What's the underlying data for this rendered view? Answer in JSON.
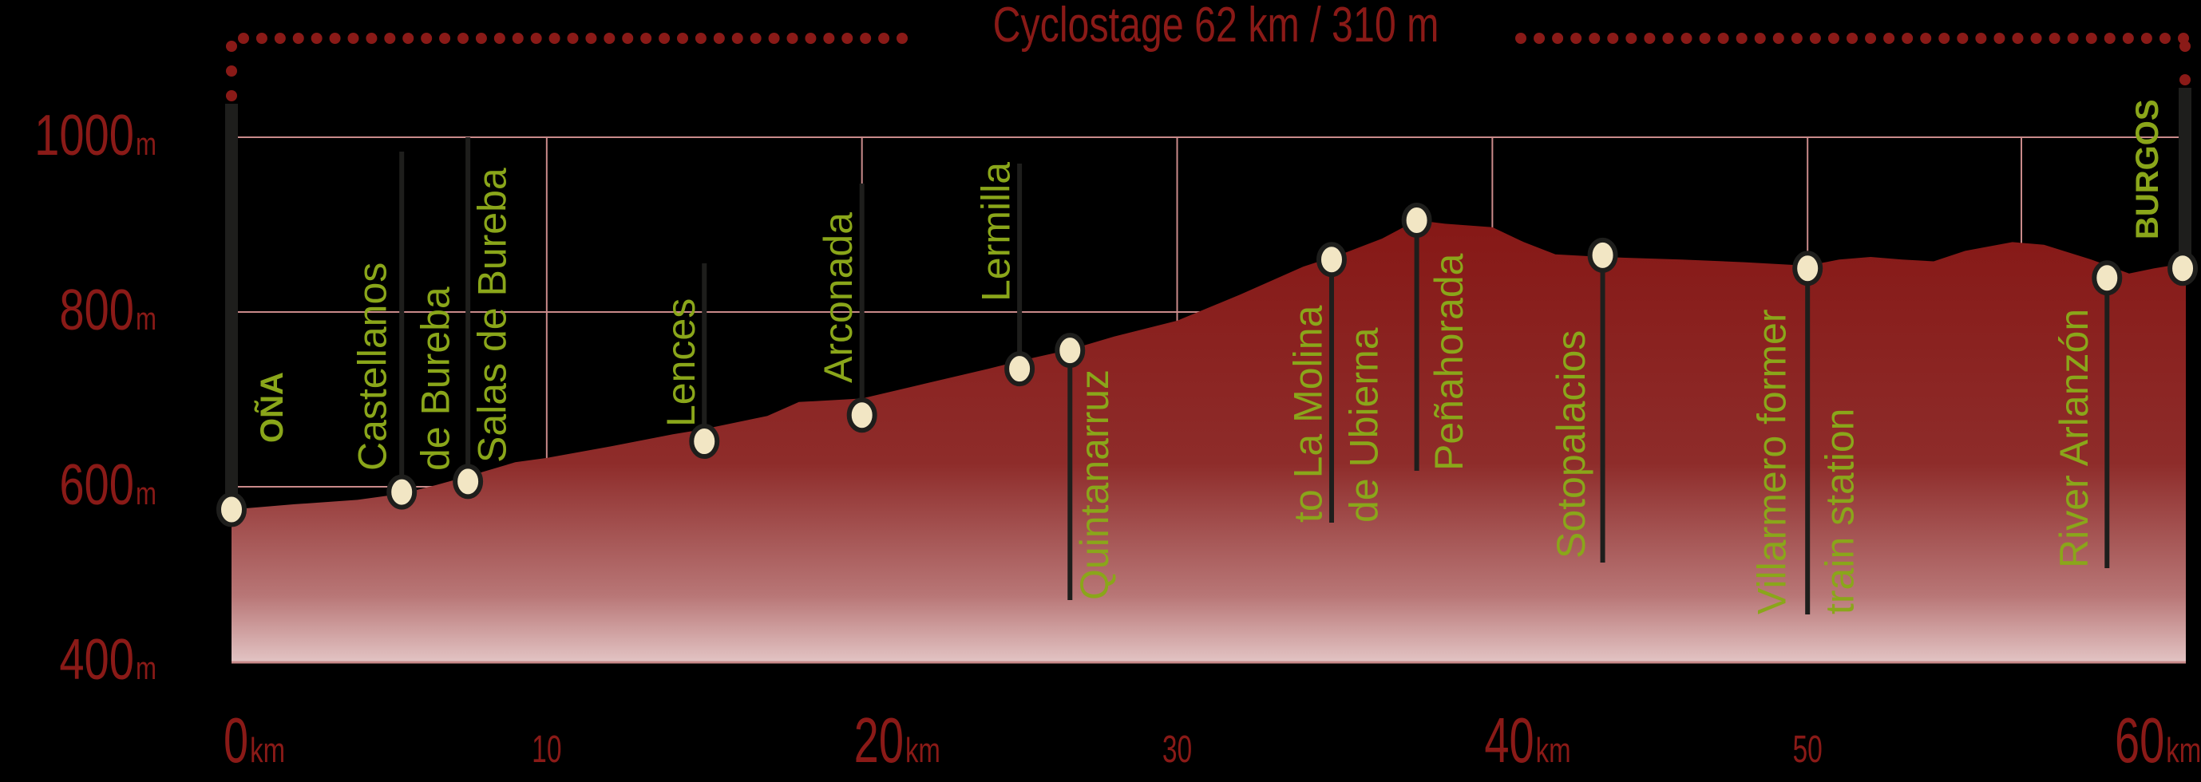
{
  "title": "Cyclostage 62 km / 310 m",
  "colors": {
    "background": "#000000",
    "accent_red": "#8a1a17",
    "label_green": "#8aa61a",
    "grid": "#c98a8a",
    "marker_fill": "#f2e6c4",
    "marker_stroke": "#1e1e1c"
  },
  "y_axis": {
    "ticks": [
      {
        "value": "1000",
        "unit": "m"
      },
      {
        "value": "800",
        "unit": "m"
      },
      {
        "value": "600",
        "unit": "m"
      },
      {
        "value": "400",
        "unit": "m"
      }
    ]
  },
  "x_axis": {
    "ticks": [
      {
        "value": "0",
        "unit": "km"
      },
      {
        "value": "10",
        "unit": ""
      },
      {
        "value": "20",
        "unit": "km"
      },
      {
        "value": "30",
        "unit": ""
      },
      {
        "value": "40",
        "unit": "km"
      },
      {
        "value": "50",
        "unit": ""
      },
      {
        "value": "60",
        "unit": "km"
      }
    ]
  },
  "start_label": "OÑA",
  "end_label": "BURGOS",
  "waypoints": [
    {
      "name": "OÑA",
      "lines": [
        "OÑA"
      ]
    },
    {
      "name": "Castellanos de Bureba",
      "lines": [
        "Castellanos",
        "de Bureba"
      ]
    },
    {
      "name": "Salas de Bureba",
      "lines": [
        "Salas de Bureba"
      ]
    },
    {
      "name": "Lences",
      "lines": [
        "Lences"
      ]
    },
    {
      "name": "Arconada",
      "lines": [
        "Arconada"
      ]
    },
    {
      "name": "Lermilla",
      "lines": [
        "Lermilla"
      ]
    },
    {
      "name": "Quintanarruz",
      "lines": [
        "Quintanarruz"
      ]
    },
    {
      "name": "to La Molina de Ubierna",
      "lines": [
        "to La Molina",
        "de Ubierna"
      ]
    },
    {
      "name": "Peñahorada",
      "lines": [
        "Peñahorada"
      ]
    },
    {
      "name": "Sotopalacios",
      "lines": [
        "Sotopalacios"
      ]
    },
    {
      "name": "Villarmero former train station",
      "lines": [
        "Villarmero former",
        "train station"
      ]
    },
    {
      "name": "River Arlanzón",
      "lines": [
        "River Arlanzón"
      ]
    },
    {
      "name": "BURGOS",
      "lines": [
        "BURGOS"
      ]
    }
  ],
  "chart_data": {
    "type": "area",
    "title": "Cyclostage 62 km / 310 m",
    "xlabel": "km",
    "ylabel": "m",
    "xlim": [
      0,
      62
    ],
    "ylim": [
      400,
      1000
    ],
    "grid": true,
    "x_ticks": [
      0,
      10,
      20,
      30,
      40,
      50,
      60
    ],
    "y_ticks": [
      400,
      600,
      800,
      1000
    ],
    "profile": {
      "x": [
        0,
        2,
        4,
        5.4,
        6.5,
        7.5,
        9,
        10,
        12,
        14,
        15,
        17,
        18,
        20,
        22,
        24,
        25,
        26.6,
        28,
        30,
        32,
        34,
        35.2,
        36.5,
        37.6,
        38.5,
        40,
        41,
        42,
        43.5,
        46,
        48,
        50,
        51,
        52,
        53,
        54,
        55,
        56.5,
        57.5,
        59,
        60.2,
        61,
        62
      ],
      "y": [
        574,
        580,
        585,
        592,
        602,
        612,
        628,
        633,
        646,
        660,
        666,
        681,
        697,
        701,
        718,
        735,
        744,
        757,
        772,
        790,
        820,
        852,
        866,
        884,
        905,
        901,
        897,
        880,
        866,
        863,
        860,
        857,
        853,
        860,
        863,
        860,
        858,
        870,
        880,
        877,
        860,
        844,
        850,
        856
      ]
    },
    "waypoints": [
      {
        "name": "OÑA",
        "km": 0.0,
        "elevation_m": 574
      },
      {
        "name": "Castellanos de Bureba",
        "km": 5.4,
        "elevation_m": 594
      },
      {
        "name": "Salas de Bureba",
        "km": 7.5,
        "elevation_m": 606
      },
      {
        "name": "Lences",
        "km": 15.0,
        "elevation_m": 652
      },
      {
        "name": "Arconada",
        "km": 20.0,
        "elevation_m": 682
      },
      {
        "name": "Lermilla",
        "km": 25.0,
        "elevation_m": 735
      },
      {
        "name": "Quintanarruz",
        "km": 26.6,
        "elevation_m": 756
      },
      {
        "name": "to La Molina de Ubierna",
        "km": 34.9,
        "elevation_m": 860
      },
      {
        "name": "Peñahorada",
        "km": 37.6,
        "elevation_m": 905
      },
      {
        "name": "Sotopalacios",
        "km": 43.5,
        "elevation_m": 865
      },
      {
        "name": "Villarmero former train station",
        "km": 50.0,
        "elevation_m": 850
      },
      {
        "name": "River Arlanzón",
        "km": 59.5,
        "elevation_m": 839
      },
      {
        "name": "BURGOS",
        "km": 61.9,
        "elevation_m": 850
      }
    ],
    "total_distance_km": 62,
    "total_climb_m": 310
  }
}
